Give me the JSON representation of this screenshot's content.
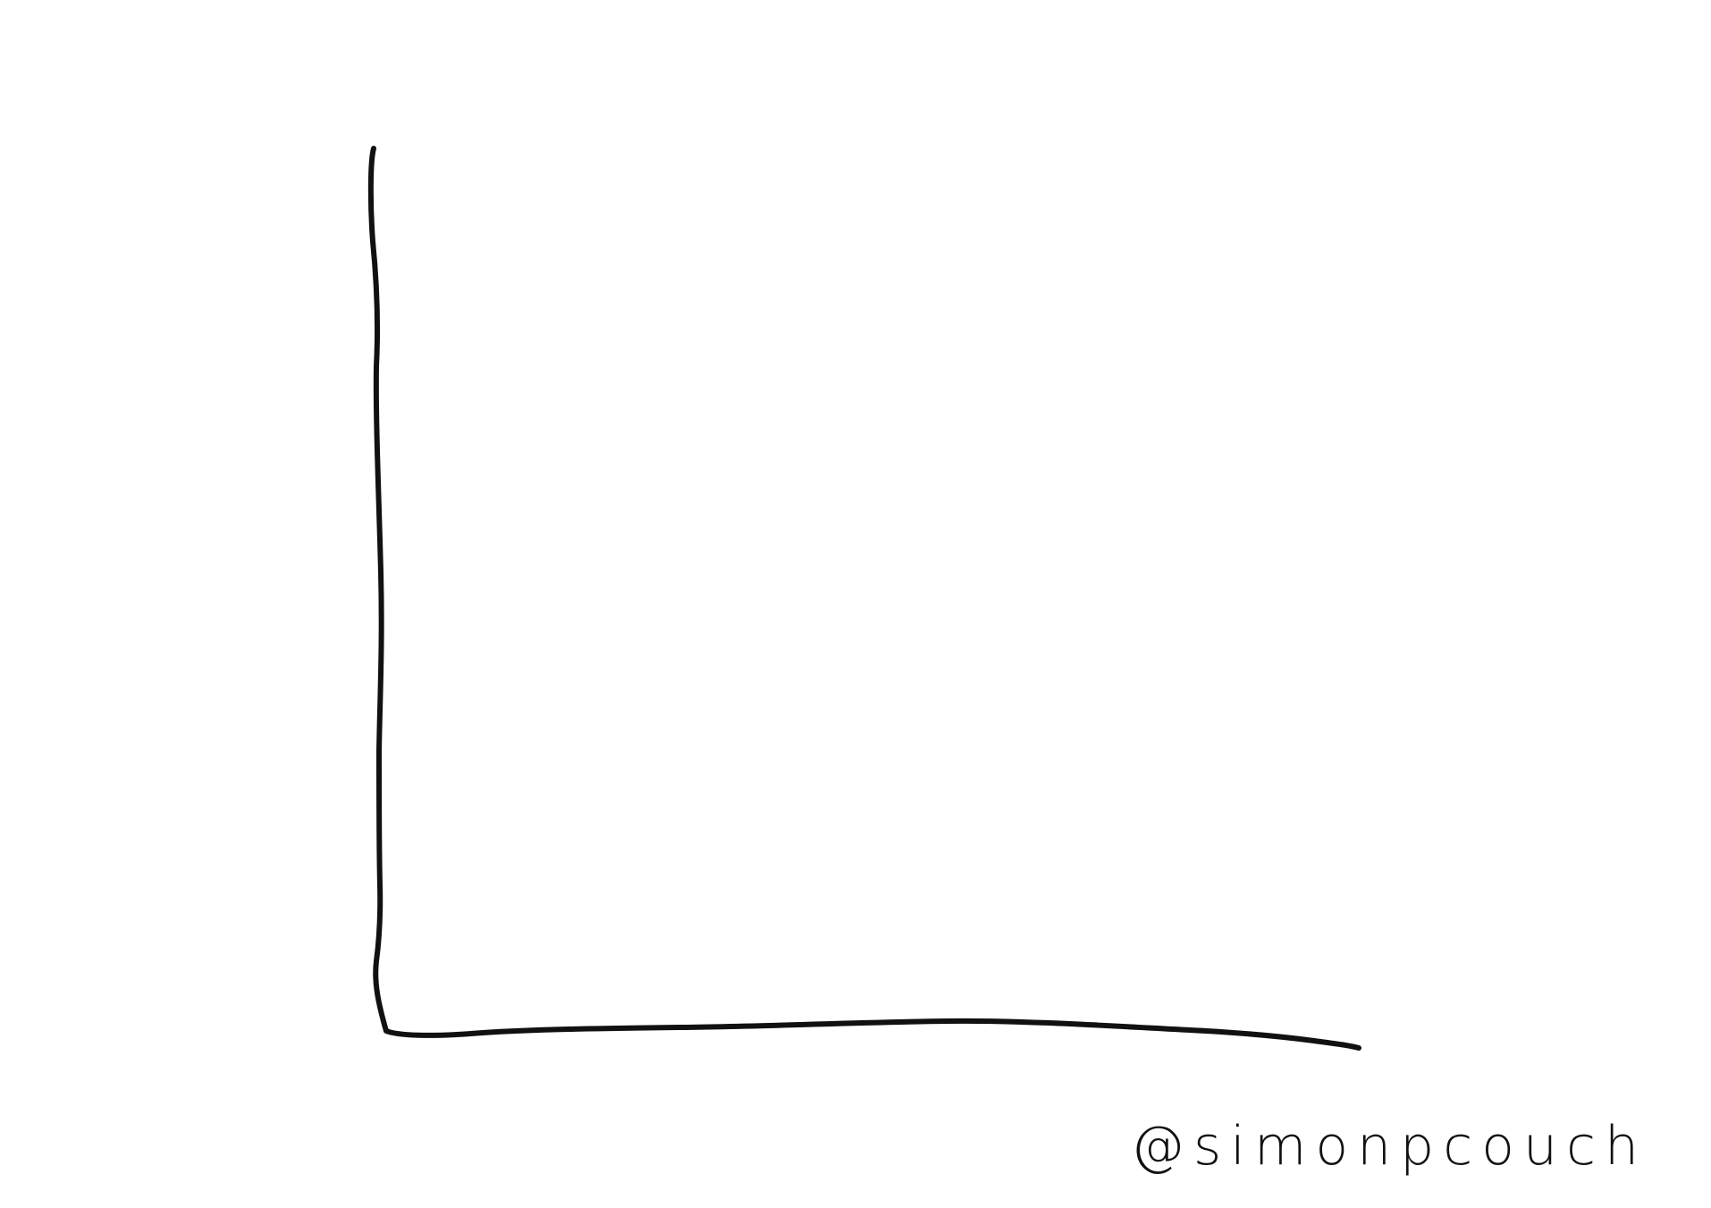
{
  "signature": "@simonpcouch"
}
